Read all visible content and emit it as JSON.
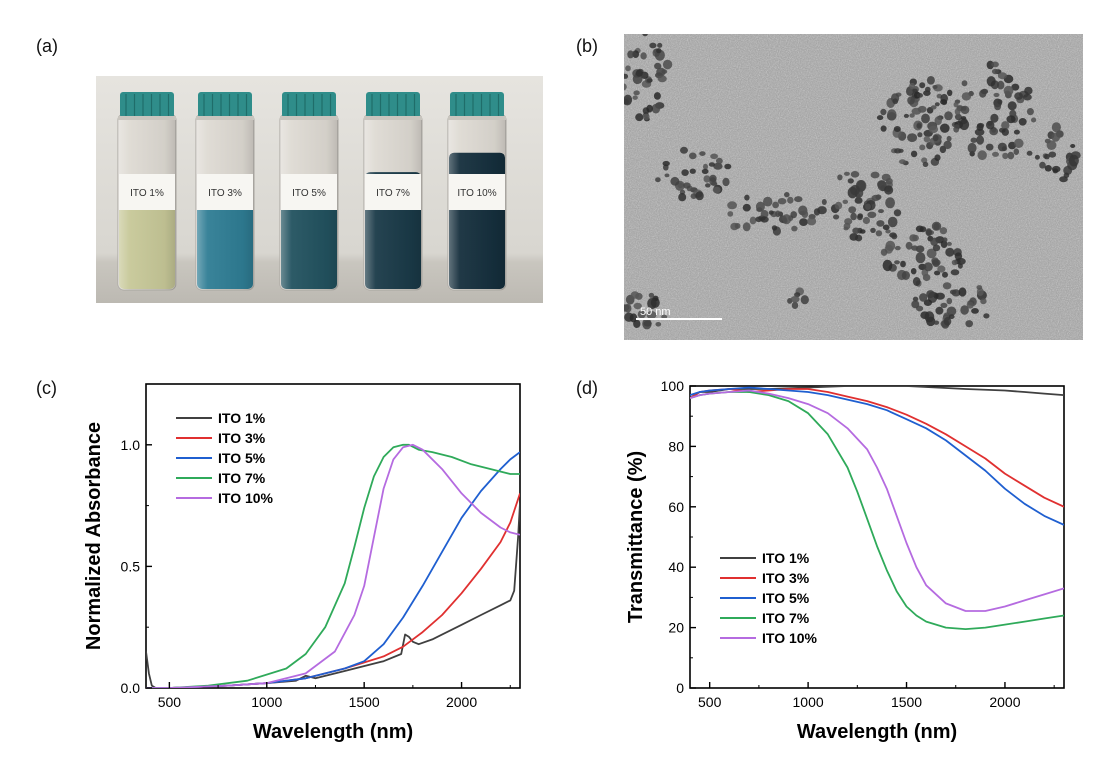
{
  "panel_labels": {
    "a": "(a)",
    "b": "(b)",
    "c": "(c)",
    "d": "(d)"
  },
  "photo": {
    "vials": [
      {
        "label": "ITO 1%",
        "liquid_color": "#c7c898",
        "fill_level": 0.52
      },
      {
        "label": "ITO 3%",
        "liquid_color": "#2f7d94",
        "fill_level": 0.52
      },
      {
        "label": "ITO 5%",
        "liquid_color": "#22525f",
        "fill_level": 0.52
      },
      {
        "label": "ITO 7%",
        "liquid_color": "#1a3a48",
        "fill_level": 0.67
      },
      {
        "label": "ITO 10%",
        "liquid_color": "#152f3d",
        "fill_level": 0.78
      }
    ],
    "cap_color": "#2f8d8a"
  },
  "tem": {
    "scale_bar_label": "50 nm"
  },
  "chart_data": [
    {
      "type": "line",
      "panel": "c",
      "xlabel": "Wavelength (nm)",
      "ylabel": "Normalized Absorbance",
      "xlim": [
        380,
        2300
      ],
      "ylim": [
        0,
        1.25
      ],
      "xticks": [
        500,
        1000,
        1500,
        2000
      ],
      "yticks": [
        0.0,
        0.5,
        1.0
      ],
      "ytick_labels": [
        "0.0",
        "0.5",
        "1.0"
      ],
      "legend_position": "top-left",
      "series": [
        {
          "name": "ITO 1%",
          "color": "#404040",
          "x": [
            380,
            395,
            410,
            430,
            500,
            800,
            1000,
            1150,
            1200,
            1250,
            1400,
            1600,
            1690,
            1710,
            1730,
            1750,
            1780,
            1850,
            2000,
            2100,
            2200,
            2250,
            2270,
            2290,
            2300
          ],
          "y": [
            0.15,
            0.06,
            0.01,
            0.0,
            0.0,
            0.01,
            0.02,
            0.03,
            0.05,
            0.04,
            0.07,
            0.11,
            0.14,
            0.22,
            0.21,
            0.19,
            0.18,
            0.2,
            0.26,
            0.3,
            0.34,
            0.36,
            0.4,
            0.62,
            0.76
          ]
        },
        {
          "name": "ITO 3%",
          "color": "#e03030",
          "x": [
            380,
            500,
            800,
            1000,
            1200,
            1400,
            1600,
            1700,
            1800,
            1900,
            2000,
            2100,
            2200,
            2250,
            2300
          ],
          "y": [
            0.0,
            0.0,
            0.01,
            0.02,
            0.04,
            0.08,
            0.13,
            0.17,
            0.23,
            0.3,
            0.39,
            0.49,
            0.6,
            0.68,
            0.8
          ]
        },
        {
          "name": "ITO 5%",
          "color": "#1f5fd0",
          "x": [
            380,
            500,
            800,
            1000,
            1200,
            1400,
            1500,
            1600,
            1700,
            1800,
            1900,
            2000,
            2100,
            2200,
            2250,
            2300
          ],
          "y": [
            0.0,
            0.0,
            0.01,
            0.02,
            0.04,
            0.08,
            0.11,
            0.18,
            0.29,
            0.42,
            0.56,
            0.7,
            0.81,
            0.9,
            0.94,
            0.97
          ]
        },
        {
          "name": "ITO 7%",
          "color": "#2faa5a",
          "x": [
            380,
            500,
            700,
            900,
            1100,
            1200,
            1300,
            1400,
            1450,
            1500,
            1550,
            1600,
            1650,
            1700,
            1730,
            1780,
            1850,
            1950,
            2050,
            2150,
            2250,
            2300
          ],
          "y": [
            0.0,
            0.0,
            0.01,
            0.03,
            0.08,
            0.14,
            0.25,
            0.43,
            0.58,
            0.74,
            0.87,
            0.95,
            0.99,
            1.0,
            1.0,
            0.98,
            0.97,
            0.95,
            0.92,
            0.9,
            0.88,
            0.88
          ]
        },
        {
          "name": "ITO 10%",
          "color": "#b56be0",
          "x": [
            380,
            500,
            800,
            1000,
            1200,
            1350,
            1450,
            1500,
            1550,
            1600,
            1650,
            1700,
            1750,
            1800,
            1900,
            2000,
            2100,
            2200,
            2250,
            2300
          ],
          "y": [
            0.0,
            0.0,
            0.01,
            0.02,
            0.06,
            0.15,
            0.3,
            0.42,
            0.62,
            0.82,
            0.94,
            0.99,
            1.0,
            0.98,
            0.9,
            0.8,
            0.72,
            0.66,
            0.64,
            0.63
          ]
        }
      ]
    },
    {
      "type": "line",
      "panel": "d",
      "xlabel": "Wavelength (nm)",
      "ylabel": "Transmittance (%)",
      "xlim": [
        400,
        2300
      ],
      "ylim": [
        0,
        100
      ],
      "xticks": [
        500,
        1000,
        1500,
        2000
      ],
      "yticks": [
        0,
        20,
        40,
        60,
        80,
        100
      ],
      "ytick_labels": [
        "0",
        "20",
        "40",
        "60",
        "80",
        "100"
      ],
      "legend_position": "bottom-left",
      "series": [
        {
          "name": "ITO 1%",
          "color": "#404040",
          "x": [
            400,
            450,
            500,
            600,
            700,
            800,
            1000,
            1200,
            1500,
            1800,
            2000,
            2100,
            2200,
            2300
          ],
          "y": [
            96,
            98,
            98,
            99,
            99,
            99,
            99.5,
            100,
            100,
            99,
            98.5,
            98,
            97.5,
            97
          ]
        },
        {
          "name": "ITO 3%",
          "color": "#e03030",
          "x": [
            400,
            450,
            500,
            600,
            700,
            800,
            900,
            1000,
            1100,
            1200,
            1300,
            1400,
            1500,
            1600,
            1700,
            1800,
            1900,
            2000,
            2100,
            2200,
            2300
          ],
          "y": [
            96,
            98,
            98.5,
            99,
            98,
            98.5,
            99,
            99,
            98,
            96.5,
            95,
            93,
            90.5,
            87.5,
            84,
            80,
            76,
            71,
            67,
            63,
            60
          ]
        },
        {
          "name": "ITO 5%",
          "color": "#1f5fd0",
          "x": [
            400,
            450,
            500,
            600,
            700,
            800,
            900,
            1000,
            1100,
            1200,
            1300,
            1400,
            1500,
            1600,
            1700,
            1800,
            1900,
            2000,
            2100,
            2200,
            2300
          ],
          "y": [
            97,
            98,
            98.5,
            99,
            99.5,
            99,
            98.5,
            98,
            97,
            95.5,
            94,
            92,
            89,
            86,
            82,
            77,
            72,
            66,
            61,
            57,
            54
          ]
        },
        {
          "name": "ITO 7%",
          "color": "#2faa5a",
          "x": [
            400,
            450,
            500,
            600,
            700,
            800,
            900,
            1000,
            1100,
            1200,
            1250,
            1300,
            1350,
            1400,
            1450,
            1500,
            1550,
            1600,
            1700,
            1800,
            1900,
            2000,
            2100,
            2200,
            2300
          ],
          "y": [
            96,
            97,
            97.5,
            98,
            98,
            97,
            95,
            91,
            84,
            73,
            65,
            56,
            47,
            39,
            32,
            27,
            24,
            22,
            20,
            19.5,
            20,
            21,
            22,
            23,
            24
          ]
        },
        {
          "name": "ITO 10%",
          "color": "#b56be0",
          "x": [
            400,
            450,
            500,
            600,
            700,
            800,
            900,
            1000,
            1100,
            1200,
            1300,
            1350,
            1400,
            1450,
            1500,
            1550,
            1600,
            1700,
            1800,
            1900,
            2000,
            2100,
            2200,
            2300
          ],
          "y": [
            96,
            97,
            97.5,
            98,
            98.5,
            97.5,
            96,
            94,
            91,
            86,
            79,
            73,
            66,
            57,
            48,
            40,
            34,
            28,
            25.5,
            25.5,
            27,
            29,
            31,
            33
          ]
        }
      ]
    }
  ]
}
